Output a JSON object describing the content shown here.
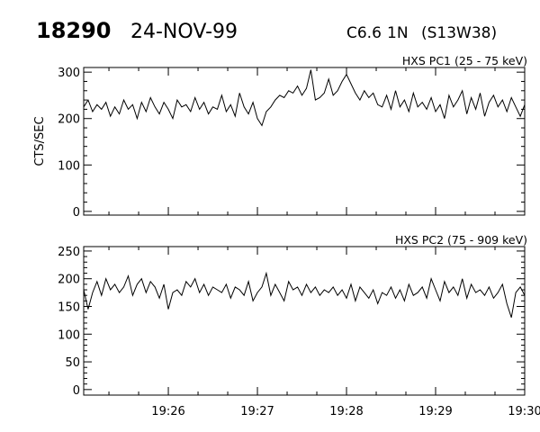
{
  "header": {
    "event_number": "18290",
    "date": "24-NOV-99",
    "goes_class": "C6.6",
    "optical_class": "1N",
    "location": "(S13W38)"
  },
  "chart_data": [
    {
      "type": "line",
      "title": "HXS PC1 (25 - 75 keV)",
      "ylabel": "CTS/SEC",
      "xlabel": "",
      "ylim": [
        -8,
        310
      ],
      "yticks": [
        0,
        100,
        200,
        300
      ],
      "ytick_labels": [
        "0",
        "100",
        "200",
        "300"
      ],
      "y_minor_step": 20,
      "x_start": "19:25:03",
      "x_end": "19:30:00",
      "xticks": [
        "19:26",
        "19:27",
        "19:28",
        "19:29",
        "19:30"
      ],
      "show_xtick_labels": false,
      "grid": false,
      "values": [
        225,
        240,
        215,
        230,
        220,
        235,
        205,
        225,
        210,
        240,
        220,
        230,
        200,
        235,
        215,
        245,
        225,
        210,
        235,
        220,
        200,
        240,
        225,
        230,
        215,
        245,
        220,
        235,
        210,
        225,
        220,
        250,
        215,
        230,
        205,
        255,
        225,
        210,
        235,
        200,
        185,
        215,
        225,
        240,
        250,
        245,
        260,
        255,
        270,
        250,
        265,
        305,
        240,
        245,
        255,
        285,
        250,
        260,
        280,
        295,
        275,
        255,
        240,
        260,
        245,
        255,
        230,
        225,
        250,
        220,
        260,
        225,
        240,
        215,
        255,
        225,
        235,
        220,
        245,
        215,
        230,
        200,
        250,
        225,
        240,
        260,
        210,
        245,
        220,
        255,
        205,
        235,
        250,
        225,
        240,
        215,
        245,
        225,
        205,
        230
      ]
    },
    {
      "type": "line",
      "title": "HXS PC2 (75 - 909 keV)",
      "ylabel": "",
      "xlabel": "",
      "ylim": [
        -10,
        258
      ],
      "yticks": [
        0,
        50,
        100,
        150,
        200,
        250
      ],
      "ytick_labels": [
        "0",
        "50",
        "100",
        "150",
        "200",
        "250"
      ],
      "y_minor_step": 10,
      "x_start": "19:25:03",
      "x_end": "19:30:00",
      "xticks": [
        "19:26",
        "19:27",
        "19:28",
        "19:29",
        "19:30"
      ],
      "show_xtick_labels": true,
      "grid": false,
      "values": [
        180,
        145,
        175,
        195,
        170,
        200,
        180,
        190,
        175,
        185,
        205,
        170,
        190,
        200,
        175,
        195,
        185,
        165,
        190,
        145,
        175,
        180,
        170,
        195,
        185,
        200,
        175,
        190,
        170,
        185,
        180,
        175,
        190,
        165,
        185,
        180,
        170,
        195,
        160,
        175,
        185,
        210,
        170,
        190,
        175,
        160,
        195,
        180,
        185,
        170,
        190,
        175,
        185,
        170,
        180,
        175,
        185,
        170,
        180,
        165,
        190,
        160,
        185,
        175,
        165,
        180,
        155,
        175,
        170,
        185,
        165,
        180,
        160,
        190,
        170,
        175,
        185,
        165,
        200,
        180,
        160,
        195,
        175,
        185,
        170,
        200,
        165,
        190,
        175,
        180,
        170,
        185,
        165,
        175,
        190,
        155,
        130,
        175,
        185,
        170
      ]
    }
  ]
}
